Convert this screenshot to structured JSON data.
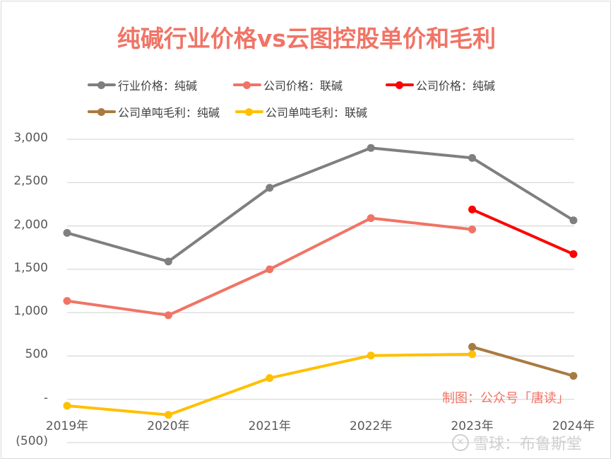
{
  "chart_data": {
    "type": "line",
    "title": "纯碱行业价格vs云图控股单价和毛利",
    "xlabel": "",
    "ylabel": "",
    "categories": [
      "2019年",
      "2020年",
      "2021年",
      "2022年",
      "2023年",
      "2024年"
    ],
    "ylim": [
      -500,
      3000
    ],
    "yticks": [
      {
        "value": 3000,
        "label": "3,000"
      },
      {
        "value": 2500,
        "label": "2,500"
      },
      {
        "value": 2000,
        "label": "2,000"
      },
      {
        "value": 1500,
        "label": "1,500"
      },
      {
        "value": 1000,
        "label": "1,000"
      },
      {
        "value": 500,
        "label": "500"
      },
      {
        "value": 0,
        "label": "-"
      },
      {
        "value": -500,
        "label": "(500)"
      }
    ],
    "grid": true,
    "legend_position": "top",
    "series": [
      {
        "name": "行业价格：纯碱",
        "color": "#7f7f7f",
        "values": [
          1920,
          1590,
          2440,
          2900,
          2785,
          2065
        ]
      },
      {
        "name": "公司价格：联碱",
        "color": "#f07466",
        "values": [
          1135,
          970,
          1500,
          2090,
          1960,
          null
        ]
      },
      {
        "name": "公司价格：纯碱",
        "color": "#ff0000",
        "values": [
          null,
          null,
          null,
          null,
          2190,
          1675
        ]
      },
      {
        "name": "公司单吨毛利：纯碱",
        "color": "#a97a40",
        "values": [
          null,
          null,
          null,
          null,
          605,
          270
        ]
      },
      {
        "name": "公司单吨毛利：联碱",
        "color": "#ffc000",
        "values": [
          -75,
          -180,
          245,
          505,
          520,
          null
        ]
      }
    ],
    "annotations": [
      "制图：公众号「唐读」"
    ]
  },
  "watermark": {
    "logo": "雪球 logo",
    "text": "雪球：布鲁斯堂"
  }
}
